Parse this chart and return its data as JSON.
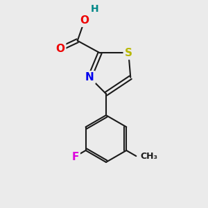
{
  "bg_color": "#ebebeb",
  "bond_color": "#1a1a1a",
  "atom_colors": {
    "S": "#b8b800",
    "N": "#0000ee",
    "O": "#ee0000",
    "H": "#008888",
    "F": "#dd00dd",
    "C": "#1a1a1a"
  },
  "font_size": 10,
  "figsize": [
    3.0,
    3.0
  ],
  "dpi": 100
}
